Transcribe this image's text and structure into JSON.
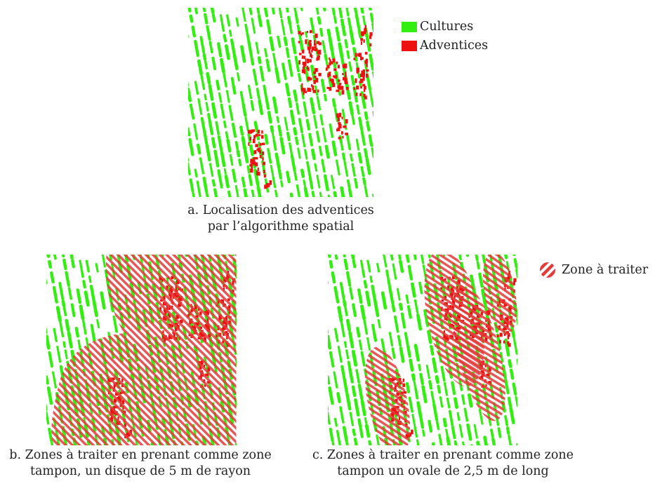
{
  "colors": {
    "crop": "#33ee11",
    "weed": "#ee1111",
    "zone_stripe": "#e33a3a",
    "background": "#ffffff"
  },
  "legend": {
    "cultures": "Cultures",
    "adventices": "Adventices",
    "zone": "Zone à traiter",
    "zone_icon": "diagonal-stripes-disc-icon"
  },
  "panels": {
    "a": {
      "caption_line1": "a. Localisation des adventices",
      "caption_line2": "par l’algorithme spatial"
    },
    "b": {
      "caption_line1": "b. Zones à traiter en prenant comme zone",
      "caption_line2": "tampon, un disque de 5 m de rayon"
    },
    "c": {
      "caption_line1": "c. Zones à traiter en prenant comme zone",
      "caption_line2": "tampon un ovale de 2,5 m de long"
    }
  }
}
